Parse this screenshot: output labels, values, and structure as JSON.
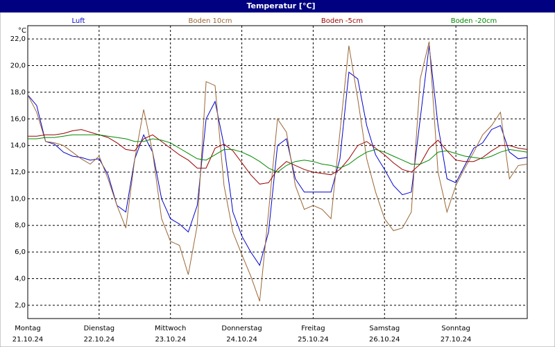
{
  "chart_data": {
    "type": "line",
    "title": "Temperatur [°C]",
    "y_label": "°C",
    "x": [
      0,
      0.125,
      0.25,
      0.375,
      0.5,
      0.625,
      0.75,
      0.875,
      1,
      1.125,
      1.25,
      1.375,
      1.5,
      1.625,
      1.75,
      1.875,
      2,
      2.125,
      2.25,
      2.375,
      2.5,
      2.625,
      2.75,
      2.875,
      3,
      3.125,
      3.25,
      3.375,
      3.5,
      3.625,
      3.75,
      3.875,
      4,
      4.125,
      4.25,
      4.375,
      4.5,
      4.625,
      4.75,
      4.875,
      5,
      5.125,
      5.25,
      5.375,
      5.5,
      5.625,
      5.75,
      5.875,
      6,
      6.125,
      6.25,
      6.375,
      6.5,
      6.625,
      6.75,
      6.875,
      7
    ],
    "series": [
      {
        "name": "Luft",
        "color": "#0000cc",
        "values": [
          17.8,
          17,
          14.3,
          14.1,
          13.5,
          13.2,
          13.1,
          12.9,
          13.0,
          11.8,
          9.5,
          9.0,
          13,
          14.8,
          13.5,
          10,
          8.5,
          8.1,
          7.5,
          9.5,
          16,
          17.3,
          14,
          9,
          7.2,
          6,
          5,
          7.5,
          14,
          14.5,
          11.5,
          10.5,
          10.5,
          10.5,
          10.5,
          13,
          19.5,
          19,
          15.5,
          13.3,
          12.2,
          11,
          10.3,
          10.5,
          16,
          21.5,
          15.5,
          11.5,
          11.2,
          12.5,
          13.8,
          14.2,
          15.2,
          15.5,
          13.5,
          13,
          13.1
        ]
      },
      {
        "name": "Boden 10cm",
        "color": "#996633",
        "values": [
          17.8,
          16.5,
          14.3,
          14.2,
          14.0,
          13.5,
          13.0,
          12.6,
          13.2,
          11.5,
          9.5,
          7.8,
          13,
          16.7,
          13.5,
          8.5,
          6.8,
          6.5,
          4.3,
          8,
          18.8,
          18.5,
          11,
          7.5,
          5.8,
          4.2,
          2.3,
          9,
          16,
          15,
          11,
          9.2,
          9.5,
          9.2,
          8.5,
          15,
          21.5,
          17.5,
          13,
          10.5,
          8.5,
          7.6,
          7.8,
          9,
          19,
          21.8,
          12,
          9,
          11,
          12.3,
          13.5,
          14.8,
          15.5,
          16.5,
          11.5,
          12.5,
          12.6
        ]
      },
      {
        "name": "Boden -5cm",
        "color": "#990000",
        "values": [
          14.7,
          14.7,
          14.8,
          14.8,
          14.9,
          15.1,
          15.2,
          15.0,
          14.8,
          14.6,
          14.2,
          13.7,
          13.6,
          14.5,
          14.8,
          14.3,
          13.8,
          13.3,
          12.9,
          12.3,
          12.3,
          13.8,
          14.1,
          13.6,
          12.7,
          11.8,
          11.1,
          11.2,
          12.2,
          12.8,
          12.5,
          12.2,
          12.0,
          11.9,
          11.8,
          12.2,
          13.0,
          14.0,
          14.3,
          13.8,
          13.3,
          12.7,
          12.2,
          12.0,
          12.6,
          13.8,
          14.4,
          13.6,
          12.9,
          12.8,
          12.8,
          13.1,
          13.6,
          14.0,
          14.0,
          13.8,
          13.7
        ]
      },
      {
        "name": "Boden -20cm",
        "color": "#008800",
        "values": [
          14.5,
          14.5,
          14.6,
          14.6,
          14.7,
          14.8,
          14.8,
          14.8,
          14.8,
          14.7,
          14.6,
          14.5,
          14.3,
          14.3,
          14.5,
          14.4,
          14.2,
          13.8,
          13.4,
          13.0,
          12.9,
          13.3,
          13.7,
          13.7,
          13.5,
          13.2,
          12.8,
          12.3,
          12.0,
          12.5,
          12.8,
          12.9,
          12.8,
          12.6,
          12.5,
          12.3,
          12.6,
          13.1,
          13.5,
          13.7,
          13.5,
          13.2,
          12.9,
          12.6,
          12.6,
          12.9,
          13.5,
          13.6,
          13.4,
          13.2,
          13.1,
          13.0,
          13.2,
          13.5,
          13.7,
          13.6,
          13.5
        ]
      }
    ],
    "xlim": [
      0,
      7
    ],
    "xticks": [
      {
        "value": 0,
        "label": "Montag",
        "date": "21.10.24"
      },
      {
        "value": 1,
        "label": "Dienstag",
        "date": "22.10.24"
      },
      {
        "value": 2,
        "label": "Mittwoch",
        "date": "23.10.24"
      },
      {
        "value": 3,
        "label": "Donnerstag",
        "date": "24.10.24"
      },
      {
        "value": 4,
        "label": "Freitag",
        "date": "25.10.24"
      },
      {
        "value": 5,
        "label": "Samstag",
        "date": "26.10.24"
      },
      {
        "value": 6,
        "label": "Sonntag",
        "date": "27.10.24"
      }
    ],
    "ylim": [
      1,
      23
    ],
    "yticks": [
      {
        "value": 2,
        "label": "2,0"
      },
      {
        "value": 4,
        "label": "4,0"
      },
      {
        "value": 6,
        "label": "6,0"
      },
      {
        "value": 8,
        "label": "8,0"
      },
      {
        "value": 10,
        "label": "10,0"
      },
      {
        "value": 12,
        "label": "12,0"
      },
      {
        "value": 14,
        "label": "14,0"
      },
      {
        "value": 16,
        "label": "16,0"
      },
      {
        "value": 18,
        "label": "18,0"
      },
      {
        "value": 20,
        "label": "20,0"
      },
      {
        "value": 22,
        "label": "22,0"
      }
    ],
    "grid": true
  }
}
